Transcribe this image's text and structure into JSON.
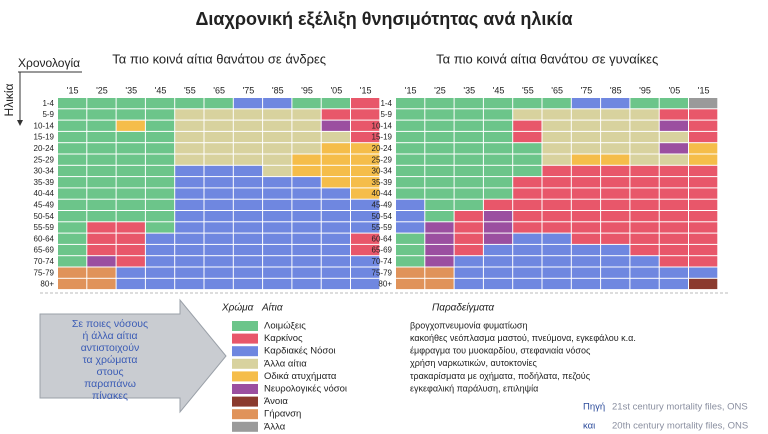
{
  "chart_data": {
    "type": "categorical-heatmap",
    "title": "Διαχρονική εξέλιξη θνησιμότητας ανά ηλικία",
    "x_axis_label": "Χρονολογία",
    "y_axis_label": "Ηλικία",
    "columns": [
      "'15",
      "'25",
      "'35",
      "'45",
      "'55",
      "'65",
      "'75",
      "'85",
      "'95",
      "'05",
      "'15"
    ],
    "rows": [
      "1-4",
      "5-9",
      "10-14",
      "15-19",
      "20-24",
      "25-29",
      "30-34",
      "35-39",
      "40-44",
      "45-49",
      "50-54",
      "55-59",
      "60-64",
      "65-69",
      "70-74",
      "75-79",
      "80+"
    ],
    "panels": [
      {
        "title": "Τα πιο κοινά αίτια θανάτου σε άνδρες",
        "cells": [
          [
            0,
            0,
            0,
            0,
            0,
            0,
            2,
            2,
            0,
            0,
            1
          ],
          [
            0,
            0,
            0,
            0,
            3,
            3,
            3,
            3,
            3,
            1,
            1
          ],
          [
            0,
            0,
            4,
            0,
            3,
            3,
            3,
            3,
            3,
            5,
            1
          ],
          [
            0,
            0,
            0,
            0,
            3,
            3,
            3,
            3,
            3,
            3,
            1
          ],
          [
            0,
            0,
            0,
            0,
            3,
            3,
            3,
            3,
            3,
            4,
            4
          ],
          [
            0,
            0,
            0,
            0,
            3,
            3,
            3,
            3,
            4,
            4,
            4
          ],
          [
            0,
            0,
            0,
            0,
            2,
            2,
            2,
            3,
            4,
            4,
            4
          ],
          [
            0,
            0,
            0,
            0,
            2,
            2,
            2,
            2,
            2,
            4,
            4
          ],
          [
            0,
            0,
            0,
            0,
            2,
            2,
            2,
            2,
            2,
            2,
            4
          ],
          [
            0,
            0,
            0,
            0,
            2,
            2,
            2,
            2,
            2,
            2,
            2
          ],
          [
            0,
            0,
            0,
            0,
            2,
            2,
            2,
            2,
            2,
            2,
            2
          ],
          [
            0,
            1,
            1,
            0,
            2,
            2,
            2,
            2,
            2,
            2,
            2
          ],
          [
            0,
            1,
            1,
            2,
            2,
            2,
            2,
            2,
            2,
            2,
            1
          ],
          [
            0,
            1,
            1,
            2,
            2,
            2,
            2,
            2,
            2,
            2,
            1
          ],
          [
            0,
            5,
            1,
            2,
            2,
            2,
            2,
            2,
            2,
            2,
            2
          ],
          [
            7,
            7,
            2,
            2,
            2,
            2,
            2,
            2,
            2,
            2,
            2
          ],
          [
            7,
            7,
            2,
            2,
            2,
            2,
            2,
            2,
            2,
            2,
            2
          ]
        ]
      },
      {
        "title": "Τα πιο κοινά αίτια θανάτου σε γυναίκες",
        "cells": [
          [
            0,
            0,
            0,
            0,
            0,
            0,
            2,
            2,
            0,
            0,
            8
          ],
          [
            0,
            0,
            0,
            0,
            3,
            3,
            3,
            3,
            3,
            1,
            1
          ],
          [
            0,
            0,
            0,
            0,
            1,
            3,
            3,
            3,
            3,
            5,
            1
          ],
          [
            0,
            0,
            0,
            0,
            1,
            3,
            3,
            3,
            3,
            3,
            1
          ],
          [
            0,
            0,
            0,
            0,
            0,
            3,
            3,
            3,
            3,
            5,
            4
          ],
          [
            0,
            0,
            0,
            0,
            0,
            3,
            4,
            4,
            3,
            3,
            4
          ],
          [
            0,
            0,
            0,
            0,
            0,
            1,
            1,
            1,
            1,
            1,
            1
          ],
          [
            0,
            0,
            0,
            0,
            1,
            1,
            1,
            1,
            1,
            1,
            1
          ],
          [
            0,
            0,
            0,
            0,
            1,
            1,
            1,
            1,
            1,
            1,
            1
          ],
          [
            2,
            0,
            0,
            1,
            1,
            1,
            1,
            1,
            1,
            1,
            1
          ],
          [
            2,
            0,
            1,
            5,
            1,
            1,
            1,
            1,
            1,
            1,
            1
          ],
          [
            2,
            5,
            1,
            5,
            1,
            1,
            1,
            1,
            1,
            1,
            1
          ],
          [
            0,
            5,
            1,
            5,
            2,
            2,
            1,
            1,
            1,
            1,
            1
          ],
          [
            0,
            5,
            1,
            2,
            2,
            2,
            2,
            2,
            1,
            1,
            1
          ],
          [
            0,
            5,
            2,
            2,
            2,
            2,
            2,
            2,
            2,
            1,
            1
          ],
          [
            7,
            7,
            2,
            2,
            2,
            2,
            2,
            2,
            2,
            2,
            2
          ],
          [
            7,
            7,
            2,
            2,
            2,
            2,
            2,
            2,
            2,
            2,
            6
          ]
        ]
      }
    ],
    "legend": {
      "header_color": "Χρώμα",
      "header_cause": "Αίτια",
      "header_examples": "Παραδείγματα",
      "items": [
        {
          "label": "Λοιμώξεις",
          "color": "#6cc58a",
          "example": "βρογχοπνευμονία φυματίωση"
        },
        {
          "label": "Καρκίνος",
          "color": "#e8576a",
          "example": "κακοήθες νεόπλασμα μαστού, πνεύμονα, εγκεφάλου κ.α."
        },
        {
          "label": "Καρδιακές Νόσοι",
          "color": "#6f87e0",
          "example": "έμφραγμα του μυοκαρδίου, στεφανιαία νόσος"
        },
        {
          "label": "Άλλα αίτια",
          "color": "#d8d29e",
          "example": "χρήση ναρκωτικών, αυτοκτονίες"
        },
        {
          "label": "Οδικά ατυχήματα",
          "color": "#f5bd4a",
          "example": "τρακαρίσματα με οχήματα, ποδήλατα, πεζούς"
        },
        {
          "label": "Νευρολογικές νόσοι",
          "color": "#9b4fa0",
          "example": "εγκεφαλική παράλυση, επιληψία"
        },
        {
          "label": "Άνοια",
          "color": "#8b3a2e"
        },
        {
          "label": "Γήρανση",
          "color": "#e0935a"
        },
        {
          "label": "Άλλα",
          "color": "#9a9a9a"
        }
      ]
    },
    "note": [
      "Σε ποιες νόσους",
      "ή άλλα αίτια",
      "αντιστοιχούν",
      "τα χρώματα",
      "στους",
      "παραπάνω",
      "πίνακες"
    ],
    "sources": [
      {
        "prefix": "Πηγή",
        "text": "21st century mortality files, ONS"
      },
      {
        "prefix": "και",
        "text": "20th century mortality files, ONS"
      }
    ]
  }
}
